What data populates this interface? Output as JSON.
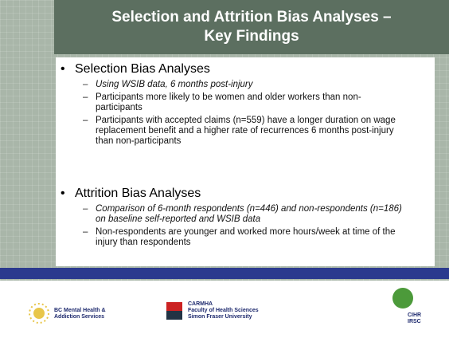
{
  "header": {
    "title_lines": [
      "Selection and Attrition Bias Analyses –",
      "Key Findings"
    ]
  },
  "sections": [
    {
      "heading": "Selection Bias Analyses",
      "items": [
        "Using WSIB data, 6 months post-injury",
        "Participants more likely to be women and older workers than non-participants",
        "Participants with accepted claims (n=559) have a longer duration on wage replacement benefit and a higher rate of recurrences 6 months post-injury than non-participants"
      ]
    },
    {
      "heading": "Attrition Bias Analyses",
      "items": [
        "Comparison of 6-month respondents (n=446) and non-respondents (n=186) on baseline self-reported and WSIB data",
        "Non-respondents are younger and worked more hours/week at time of the injury than respondents"
      ]
    }
  ],
  "footer": {
    "logos": [
      {
        "lines": [
          "BC Mental Health &",
          "Addiction Services"
        ]
      },
      {
        "lines": [
          "CARMHA",
          "Faculty of Health Sciences",
          "Simon Fraser University"
        ]
      },
      {
        "lines": [
          "CIHR",
          "IRSC"
        ]
      }
    ]
  }
}
